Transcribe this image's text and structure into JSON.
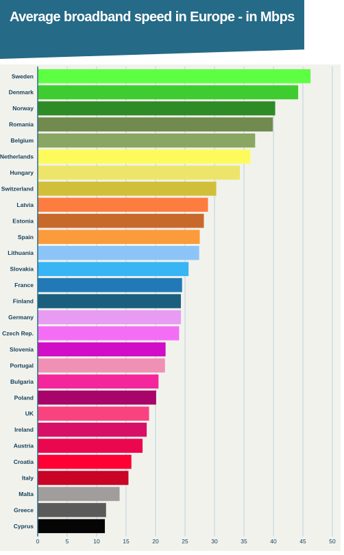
{
  "chart_data": {
    "type": "bar",
    "orientation": "horizontal",
    "title": "Average broadband speed in Europe - in Mbps",
    "categories": [
      "Sweden",
      "Denmark",
      "Norway",
      "Romania",
      "Belgium",
      "Netherlands",
      "Hungary",
      "Switzerland",
      "Latvia",
      "Estonia",
      "Spain",
      "Lithuania",
      "Slovakia",
      "France",
      "Finland",
      "Germany",
      "Czech Rep.",
      "Slovenia",
      "Portugal",
      "Bulgaria",
      "Poland",
      "UK",
      "Ireland",
      "Austria",
      "Croatia",
      "Italy",
      "Malta",
      "Greece",
      "Cyprus"
    ],
    "values": [
      46.3,
      44.2,
      40.3,
      39.9,
      36.9,
      36.1,
      34.3,
      30.3,
      28.9,
      28.2,
      27.5,
      27.4,
      25.6,
      24.5,
      24.3,
      24.3,
      24.0,
      21.7,
      21.6,
      20.5,
      20.1,
      18.9,
      18.5,
      17.8,
      15.9,
      15.4,
      13.9,
      11.6,
      11.4
    ],
    "colors": [
      "#5dff42",
      "#3fcc30",
      "#2e8b26",
      "#718a4e",
      "#8aa663",
      "#fdfb5b",
      "#ece56a",
      "#d1bf3a",
      "#fd7c40",
      "#c8692c",
      "#fb9b3c",
      "#8dc4f8",
      "#37b5f5",
      "#217ab6",
      "#1a5f7e",
      "#e89bf2",
      "#f46ef5",
      "#d10dc7",
      "#ef90b4",
      "#f4269c",
      "#a8046a",
      "#f94380",
      "#d80f66",
      "#eb0650",
      "#ff0034",
      "#c90426",
      "#a19d9d",
      "#5a5a5a",
      "#050505"
    ],
    "xlim": [
      0,
      50
    ],
    "xticks": [
      0,
      5,
      10,
      15,
      20,
      25,
      30,
      35,
      40,
      45,
      50
    ],
    "xlabel": "",
    "ylabel": "",
    "grid": true,
    "legend": "none"
  }
}
